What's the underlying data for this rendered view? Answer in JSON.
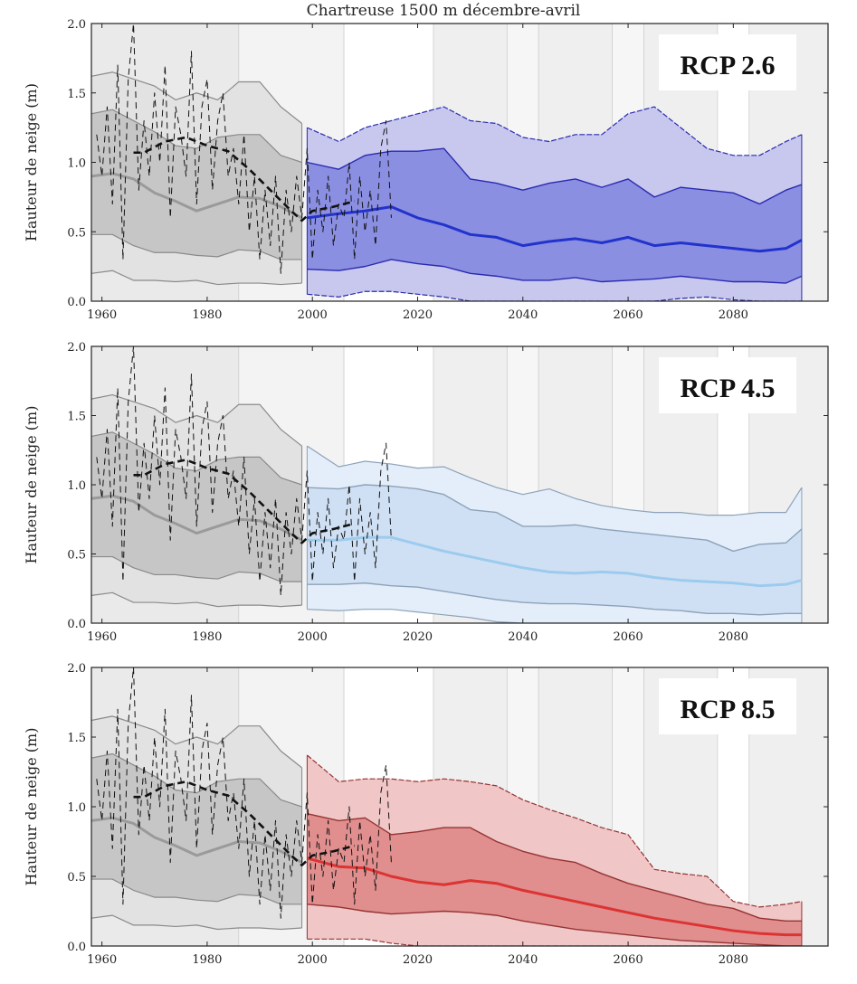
{
  "chart_data": {
    "type": "area",
    "title": "Chartreuse 1500 m décembre-avril",
    "ylabel": "Hauteur de neige (m)",
    "xlabel": "",
    "xlim": [
      1958,
      2098
    ],
    "ylim": [
      0,
      2.0
    ],
    "xticks": [
      "1960",
      "1980",
      "2000",
      "2020",
      "2040",
      "2060",
      "2080"
    ],
    "yticks": [
      "0.0",
      "0.5",
      "1.0",
      "1.5",
      "2.0"
    ],
    "grid": false,
    "background_bands": [
      {
        "start": 1958,
        "end": 1986,
        "color": "#eaeaea"
      },
      {
        "start": 1986,
        "end": 2006,
        "color": "#f3f3f3"
      },
      {
        "start": 2006,
        "end": 2023,
        "color": "#ffffff"
      },
      {
        "start": 2023,
        "end": 2037,
        "color": "#efefef"
      },
      {
        "start": 2037,
        "end": 2043,
        "color": "#f6f6f6"
      },
      {
        "start": 2043,
        "end": 2057,
        "color": "#efefef"
      },
      {
        "start": 2057,
        "end": 2063,
        "color": "#f6f6f6"
      },
      {
        "start": 2063,
        "end": 2077,
        "color": "#efefef"
      },
      {
        "start": 2077,
        "end": 2083,
        "color": "#ffffff"
      },
      {
        "start": 2083,
        "end": 2098,
        "color": "#efefef"
      }
    ],
    "historical": {
      "years": [
        1958,
        1962,
        1966,
        1970,
        1974,
        1978,
        1982,
        1986,
        1990,
        1994,
        1998
      ],
      "q05": [
        0.2,
        0.22,
        0.15,
        0.15,
        0.14,
        0.15,
        0.12,
        0.13,
        0.13,
        0.12,
        0.13
      ],
      "q25": [
        0.48,
        0.48,
        0.4,
        0.35,
        0.35,
        0.33,
        0.32,
        0.37,
        0.36,
        0.3,
        0.3
      ],
      "median": [
        0.9,
        0.92,
        0.88,
        0.78,
        0.72,
        0.65,
        0.7,
        0.75,
        0.74,
        0.68,
        0.6
      ],
      "q75": [
        1.35,
        1.38,
        1.3,
        1.22,
        1.12,
        1.1,
        1.18,
        1.2,
        1.2,
        1.05,
        1.0
      ],
      "q95": [
        1.62,
        1.65,
        1.6,
        1.55,
        1.45,
        1.5,
        1.45,
        1.58,
        1.58,
        1.4,
        1.28
      ],
      "colors": {
        "outer": "#e2e2e2",
        "inner": "#c6c6c6",
        "line": "#8a8a8a",
        "median": "#9a9a9a"
      }
    },
    "observed": {
      "years": [
        1959,
        1960,
        1961,
        1962,
        1963,
        1964,
        1965,
        1966,
        1967,
        1968,
        1969,
        1970,
        1971,
        1972,
        1973,
        1974,
        1975,
        1976,
        1977,
        1978,
        1979,
        1980,
        1981,
        1982,
        1983,
        1984,
        1985,
        1986,
        1987,
        1988,
        1989,
        1990,
        1991,
        1992,
        1993,
        1994,
        1995,
        1996,
        1997,
        1998,
        1999,
        2000,
        2001,
        2002,
        2003,
        2004,
        2005,
        2006,
        2007,
        2008,
        2009,
        2010,
        2011,
        2012,
        2013,
        2014,
        2015
      ],
      "values": [
        1.2,
        0.9,
        1.4,
        0.7,
        1.7,
        0.3,
        1.6,
        2.0,
        0.8,
        1.3,
        0.9,
        1.5,
        1.0,
        1.7,
        0.6,
        1.4,
        1.2,
        0.9,
        1.8,
        0.7,
        1.4,
        1.6,
        0.8,
        1.3,
        1.5,
        0.9,
        1.1,
        0.7,
        1.2,
        0.5,
        0.9,
        0.3,
        0.8,
        0.4,
        0.9,
        0.2,
        0.8,
        0.5,
        0.9,
        0.6,
        1.1,
        0.3,
        0.8,
        0.5,
        0.9,
        0.4,
        0.7,
        0.6,
        1.0,
        0.3,
        0.9,
        0.5,
        0.8,
        0.4,
        1.1,
        1.3,
        0.6
      ],
      "running_mean_years": [
        1966,
        1968,
        1972,
        1976,
        1980,
        1984,
        1988,
        1992,
        1996,
        1998,
        2000,
        2004,
        2008
      ],
      "running_mean": [
        1.07,
        1.07,
        1.15,
        1.18,
        1.12,
        1.08,
        0.95,
        0.8,
        0.65,
        0.58,
        0.65,
        0.68,
        0.72
      ]
    },
    "projection_years": [
      1999,
      2005,
      2010,
      2015,
      2020,
      2025,
      2030,
      2035,
      2040,
      2045,
      2050,
      2055,
      2060,
      2065,
      2070,
      2075,
      2080,
      2085,
      2090,
      2093
    ],
    "panels": [
      {
        "label": "RCP 2.6",
        "colors": {
          "outer": "#c8c8ef",
          "inner": "#8b8fe2",
          "line": "#2a2ab0",
          "median": "#2233cc"
        },
        "q95": [
          1.25,
          1.15,
          1.25,
          1.3,
          1.35,
          1.4,
          1.3,
          1.28,
          1.18,
          1.15,
          1.2,
          1.2,
          1.35,
          1.4,
          1.25,
          1.1,
          1.05,
          1.05,
          1.15,
          1.2
        ],
        "q75": [
          1.0,
          0.95,
          1.05,
          1.08,
          1.08,
          1.1,
          0.88,
          0.85,
          0.8,
          0.85,
          0.88,
          0.82,
          0.88,
          0.75,
          0.82,
          0.8,
          0.78,
          0.7,
          0.8,
          0.84
        ],
        "median": [
          0.6,
          0.63,
          0.65,
          0.68,
          0.6,
          0.55,
          0.48,
          0.46,
          0.4,
          0.43,
          0.45,
          0.42,
          0.46,
          0.4,
          0.42,
          0.4,
          0.38,
          0.36,
          0.38,
          0.44
        ],
        "q25": [
          0.23,
          0.22,
          0.25,
          0.3,
          0.27,
          0.25,
          0.2,
          0.18,
          0.15,
          0.15,
          0.17,
          0.14,
          0.15,
          0.16,
          0.18,
          0.16,
          0.14,
          0.14,
          0.13,
          0.18
        ],
        "q05": [
          0.05,
          0.03,
          0.07,
          0.07,
          0.05,
          0.03,
          0,
          0,
          0,
          0,
          0,
          0,
          0,
          0,
          0.02,
          0.03,
          0.01,
          0,
          0,
          0
        ]
      },
      {
        "label": "RCP 4.5",
        "colors": {
          "outer": "#e4eefa",
          "inner": "#cfe0f4",
          "line": "#8da2b8",
          "median": "#9ccbee"
        },
        "q95": [
          1.28,
          1.13,
          1.17,
          1.15,
          1.12,
          1.13,
          1.05,
          0.98,
          0.93,
          0.97,
          0.9,
          0.85,
          0.82,
          0.8,
          0.8,
          0.78,
          0.78,
          0.8,
          0.8,
          0.98
        ],
        "q75": [
          0.98,
          0.97,
          1.0,
          0.99,
          0.97,
          0.93,
          0.82,
          0.8,
          0.7,
          0.7,
          0.71,
          0.68,
          0.66,
          0.64,
          0.62,
          0.6,
          0.52,
          0.57,
          0.58,
          0.68
        ],
        "median": [
          0.6,
          0.6,
          0.62,
          0.62,
          0.57,
          0.52,
          0.48,
          0.44,
          0.4,
          0.37,
          0.36,
          0.37,
          0.36,
          0.33,
          0.31,
          0.3,
          0.29,
          0.27,
          0.28,
          0.31
        ],
        "q25": [
          0.28,
          0.28,
          0.29,
          0.27,
          0.26,
          0.23,
          0.2,
          0.17,
          0.15,
          0.14,
          0.14,
          0.13,
          0.12,
          0.1,
          0.09,
          0.07,
          0.07,
          0.06,
          0.07,
          0.07
        ],
        "q05": [
          0.1,
          0.09,
          0.1,
          0.1,
          0.08,
          0.06,
          0.04,
          0.01,
          0,
          0,
          0,
          0,
          0,
          0,
          0,
          0,
          0,
          0,
          0,
          0
        ]
      },
      {
        "label": "RCP 8.5",
        "colors": {
          "outer": "#f0c6c6",
          "inner": "#e08e8e",
          "line": "#963333",
          "median": "#dd3333"
        },
        "q95": [
          1.37,
          1.18,
          1.2,
          1.2,
          1.18,
          1.2,
          1.18,
          1.15,
          1.05,
          0.98,
          0.92,
          0.85,
          0.8,
          0.55,
          0.52,
          0.5,
          0.32,
          0.28,
          0.3,
          0.32
        ],
        "q75": [
          0.95,
          0.9,
          0.92,
          0.8,
          0.82,
          0.85,
          0.85,
          0.75,
          0.68,
          0.63,
          0.6,
          0.52,
          0.45,
          0.4,
          0.35,
          0.3,
          0.27,
          0.2,
          0.18,
          0.18
        ],
        "median": [
          0.63,
          0.57,
          0.56,
          0.5,
          0.46,
          0.44,
          0.47,
          0.45,
          0.4,
          0.36,
          0.32,
          0.28,
          0.24,
          0.2,
          0.17,
          0.14,
          0.11,
          0.09,
          0.08,
          0.08
        ],
        "q25": [
          0.3,
          0.28,
          0.25,
          0.23,
          0.24,
          0.25,
          0.24,
          0.22,
          0.18,
          0.15,
          0.12,
          0.1,
          0.08,
          0.06,
          0.04,
          0.03,
          0.02,
          0.01,
          0,
          0
        ],
        "q05": [
          0.05,
          0.05,
          0.05,
          0.02,
          0,
          0,
          0,
          0,
          0,
          0,
          0,
          0,
          0,
          0,
          0,
          0,
          0,
          0,
          0,
          0
        ]
      }
    ]
  }
}
